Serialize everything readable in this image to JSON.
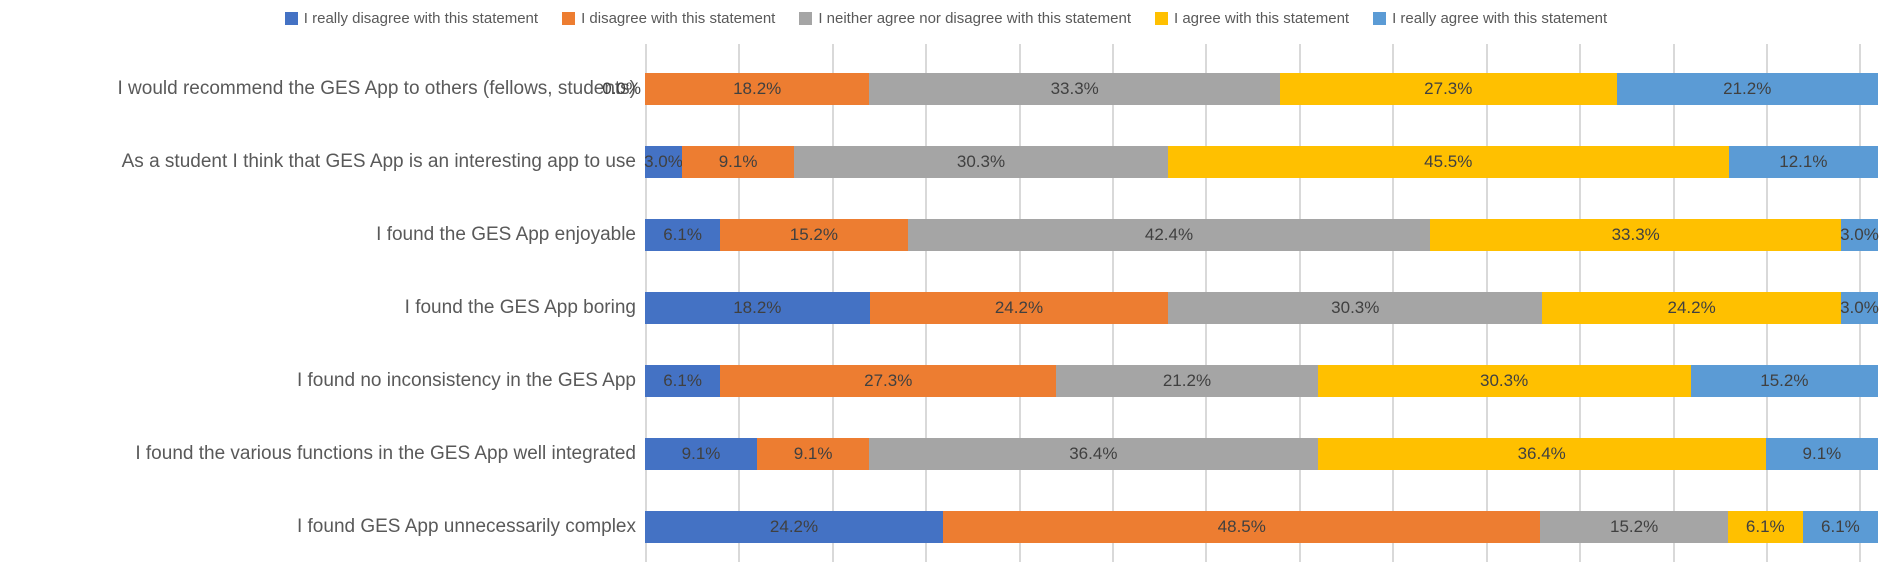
{
  "legend": {
    "items": [
      {
        "label": "I really disagree with this statement",
        "color": "#4472C4"
      },
      {
        "label": "I disagree with this statement",
        "color": "#ED7D31"
      },
      {
        "label": "I neither agree nor disagree with this statement",
        "color": "#A5A5A5"
      },
      {
        "label": "I agree with this statement",
        "color": "#FFC000"
      },
      {
        "label": "I really agree with this statement",
        "color": "#5B9BD5"
      }
    ]
  },
  "chart_data": {
    "type": "bar",
    "orientation": "horizontal",
    "stacked": true,
    "value_unit": "%",
    "title": "",
    "xlabel": "",
    "ylabel": "",
    "categories": [
      "I would recommend the GES App to others (fellows, students)",
      "As a student I think that GES App is an interesting app to use",
      "I found the GES App enjoyable",
      "I found the GES App boring",
      "I found no inconsistency in the GES App",
      "I found the various functions in the GES App well integrated",
      "I found GES App unnecessarily complex"
    ],
    "series": [
      {
        "name": "I really disagree with this statement",
        "color": "#4472C4",
        "values": [
          0.0,
          3.0,
          6.1,
          18.2,
          6.1,
          9.1,
          24.2
        ]
      },
      {
        "name": "I disagree with this statement",
        "color": "#ED7D31",
        "values": [
          18.2,
          9.1,
          15.2,
          24.2,
          27.3,
          9.1,
          48.5
        ]
      },
      {
        "name": "I neither agree nor disagree with this statement",
        "color": "#A5A5A5",
        "values": [
          33.3,
          30.3,
          42.4,
          30.3,
          21.2,
          36.4,
          15.2
        ]
      },
      {
        "name": "I agree with this statement",
        "color": "#FFC000",
        "values": [
          27.3,
          45.5,
          33.3,
          24.2,
          30.3,
          36.4,
          6.1
        ]
      },
      {
        "name": "I really agree with this statement",
        "color": "#5B9BD5",
        "values": [
          21.2,
          12.1,
          3.0,
          3.0,
          15.2,
          9.1,
          6.1
        ]
      }
    ],
    "data_label_format": "0.0%",
    "layout": {
      "legend_position": "top",
      "grid": "vertical",
      "gridline_count": 14,
      "gridline_step_pct": 7.5758,
      "x_axis_labels_visible": false,
      "gridline_color": "#D9D9D9"
    }
  }
}
